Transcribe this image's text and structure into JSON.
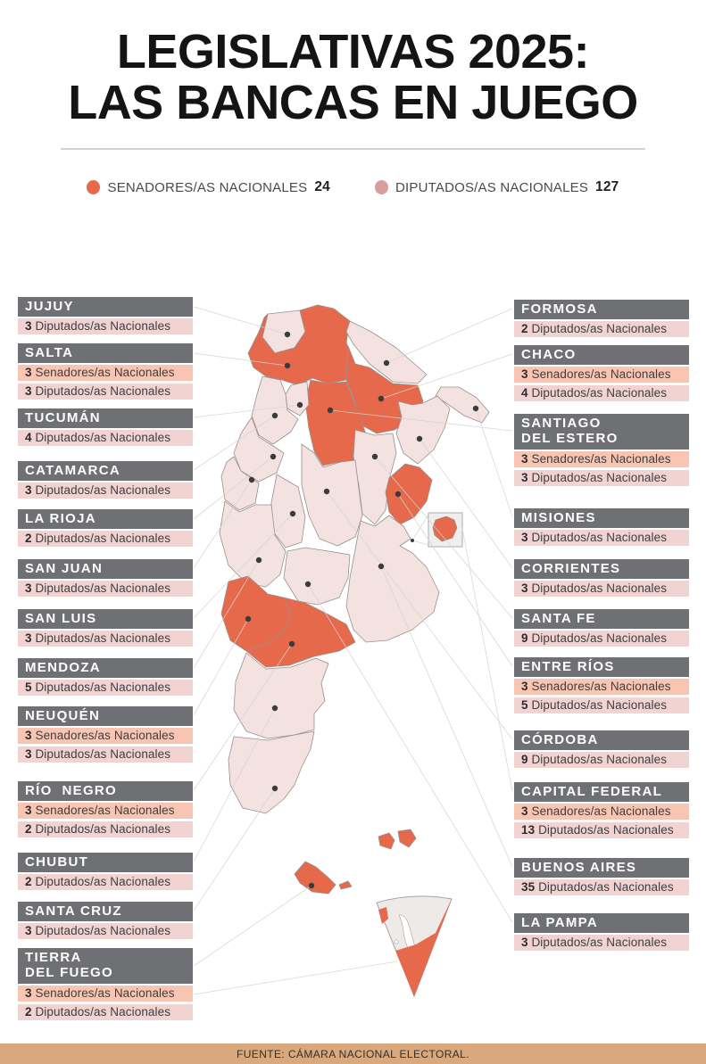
{
  "title": {
    "line1": "LEGISLATIVAS 2025:",
    "line2": "LAS BANCAS EN JUEGO"
  },
  "legend": {
    "senadores": {
      "label": "SENADORES/AS NACIONALES",
      "total": "24",
      "color": "#E5694A"
    },
    "diputados": {
      "label": "DIPUTADOS/AS NACIONALES",
      "total": "127",
      "color": "#D89E9C"
    }
  },
  "map": {
    "colors": {
      "senadores_province": "#E5694A",
      "diputados_province": "#F4E2E1",
      "senadores_row_bg": "#F7C5B2",
      "diputados_row_bg": "#F1D3D2",
      "header_bg": "#6F7073"
    }
  },
  "provinces_left": [
    {
      "name": "JUJUY",
      "seats": [
        {
          "type": "diputados",
          "count": "3",
          "label": "Diputados/as Nacionales"
        }
      ]
    },
    {
      "name": "SALTA",
      "seats": [
        {
          "type": "senadores",
          "count": "3",
          "label": "Senadores/as Nacionales"
        },
        {
          "type": "diputados",
          "count": "3",
          "label": "Diputados/as Nacionales"
        }
      ]
    },
    {
      "name": "TUCUMÁN",
      "seats": [
        {
          "type": "diputados",
          "count": "4",
          "label": "Diputados/as Nacionales"
        }
      ]
    },
    {
      "name": "CATAMARCA",
      "seats": [
        {
          "type": "diputados",
          "count": "3",
          "label": "Diputados/as Nacionales"
        }
      ]
    },
    {
      "name": "LA RIOJA",
      "seats": [
        {
          "type": "diputados",
          "count": "2",
          "label": "Diputados/as Nacionales"
        }
      ]
    },
    {
      "name": "SAN JUAN",
      "seats": [
        {
          "type": "diputados",
          "count": "3",
          "label": "Diputados/as Nacionales"
        }
      ]
    },
    {
      "name": "SAN LUIS",
      "seats": [
        {
          "type": "diputados",
          "count": "3",
          "label": "Diputados/as Nacionales"
        }
      ]
    },
    {
      "name": "MENDOZA",
      "seats": [
        {
          "type": "diputados",
          "count": "5",
          "label": "Diputados/as Nacionales"
        }
      ]
    },
    {
      "name": "NEUQUÉN",
      "seats": [
        {
          "type": "senadores",
          "count": "3",
          "label": "Senadores/as Nacionales"
        },
        {
          "type": "diputados",
          "count": "3",
          "label": "Diputados/as Nacionales"
        }
      ]
    },
    {
      "name": "RÍO  NEGRO",
      "seats": [
        {
          "type": "senadores",
          "count": "3",
          "label": "Senadores/as Nacionales"
        },
        {
          "type": "diputados",
          "count": "2",
          "label": "Diputados/as Nacionales"
        }
      ]
    },
    {
      "name": "CHUBUT",
      "seats": [
        {
          "type": "diputados",
          "count": "2",
          "label": "Diputados/as Nacionales"
        }
      ]
    },
    {
      "name": "SANTA CRUZ",
      "seats": [
        {
          "type": "diputados",
          "count": "3",
          "label": "Diputados/as Nacionales"
        }
      ]
    },
    {
      "name": "TIERRA\nDEL FUEGO",
      "seats": [
        {
          "type": "senadores",
          "count": "3",
          "label": "Senadores/as Nacionales"
        },
        {
          "type": "diputados",
          "count": "2",
          "label": "Diputados/as Nacionales"
        }
      ]
    }
  ],
  "provinces_right": [
    {
      "name": "FORMOSA",
      "seats": [
        {
          "type": "diputados",
          "count": "2",
          "label": "Diputados/as Nacionales"
        }
      ]
    },
    {
      "name": "CHACO",
      "seats": [
        {
          "type": "senadores",
          "count": "3",
          "label": "Senadores/as Nacionales"
        },
        {
          "type": "diputados",
          "count": "4",
          "label": "Diputados/as Nacionales"
        }
      ]
    },
    {
      "name": "SANTIAGO\nDEL ESTERO",
      "seats": [
        {
          "type": "senadores",
          "count": "3",
          "label": "Senadores/as Nacionales"
        },
        {
          "type": "diputados",
          "count": "3",
          "label": "Diputados/as Nacionales"
        }
      ]
    },
    {
      "name": "MISIONES",
      "seats": [
        {
          "type": "diputados",
          "count": "3",
          "label": "Diputados/as Nacionales"
        }
      ]
    },
    {
      "name": "CORRIENTES",
      "seats": [
        {
          "type": "diputados",
          "count": "3",
          "label": "Diputados/as Nacionales"
        }
      ]
    },
    {
      "name": "SANTA FE",
      "seats": [
        {
          "type": "diputados",
          "count": "9",
          "label": "Diputados/as Nacionales"
        }
      ]
    },
    {
      "name": "ENTRE RÍOS",
      "seats": [
        {
          "type": "senadores",
          "count": "3",
          "label": "Senadores/as Nacionales"
        },
        {
          "type": "diputados",
          "count": "5",
          "label": "Diputados/as Nacionales"
        }
      ]
    },
    {
      "name": "CÓRDOBA",
      "seats": [
        {
          "type": "diputados",
          "count": "9",
          "label": "Diputados/as Nacionales"
        }
      ]
    },
    {
      "name": "CAPITAL FEDERAL",
      "seats": [
        {
          "type": "senadores",
          "count": "3",
          "label": "Senadores/as Nacionales"
        },
        {
          "type": "diputados",
          "count": "13",
          "label": "Diputados/as Nacionales"
        }
      ]
    },
    {
      "name": "BUENOS AIRES",
      "seats": [
        {
          "type": "diputados",
          "count": "35",
          "label": "Diputados/as Nacionales"
        }
      ]
    },
    {
      "name": "LA PAMPA",
      "seats": [
        {
          "type": "diputados",
          "count": "3",
          "label": "Diputados/as Nacionales"
        }
      ]
    }
  ],
  "footer": {
    "source": "FUENTE: CÁMARA NACIONAL ELECTORAL.",
    "bg": "#D9A87D"
  }
}
